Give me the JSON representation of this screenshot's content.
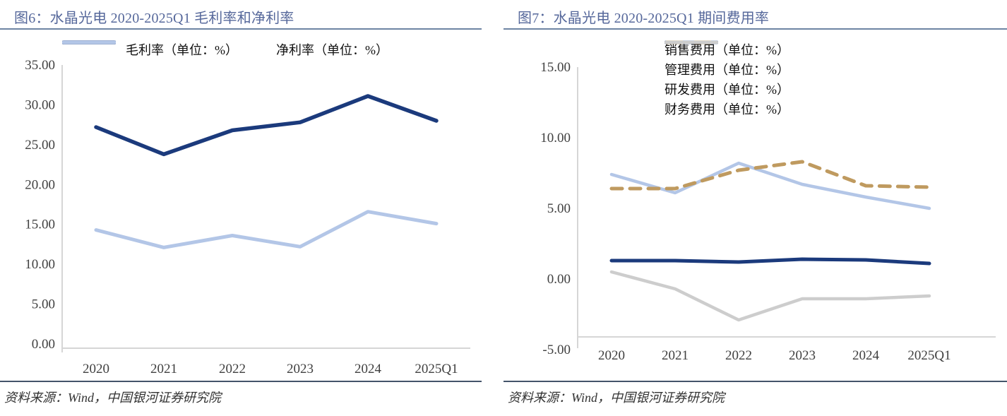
{
  "palette": {
    "title_color": "#56689b",
    "title_rule_color": "#6e84a3",
    "footer_rule_color": "#44546a",
    "axis_line_color": "#d6d6d6",
    "tick_label_color": "#404040",
    "navy": "#1b3a7c",
    "light_blue": "#b3c6e7",
    "tan": "#bf9a5f",
    "gray": "#cdcdcd"
  },
  "figures": [
    {
      "title": "图6：水晶光电 2020-2025Q1 毛利率和净利率",
      "source": "资料来源：Wind，中国银河证券研究院"
    },
    {
      "title": "图7：水晶光电 2020-2025Q1 期间费用率",
      "source": "资料来源：Wind，中国银河证券研究院"
    }
  ],
  "chart_data": [
    {
      "type": "line",
      "title": "图6：水晶光电 2020-2025Q1 毛利率和净利率",
      "categories": [
        "2020",
        "2021",
        "2022",
        "2023",
        "2024",
        "2025Q1"
      ],
      "series": [
        {
          "name": "毛利率（单位：%）",
          "color": "#1b3a7c",
          "style": "solid",
          "values": [
            27.2,
            23.8,
            26.8,
            27.8,
            31.1,
            28.0
          ]
        },
        {
          "name": "净利率（单位：%）",
          "color": "#b3c6e7",
          "style": "solid",
          "values": [
            14.3,
            12.1,
            13.6,
            12.2,
            16.6,
            15.1
          ]
        }
      ],
      "xlabel": "",
      "ylabel": "",
      "ylim": [
        0,
        35
      ],
      "ytick_step": 5,
      "ytick_decimals": 2,
      "grid": false,
      "legend_position": "top-center",
      "source": "资料来源：Wind，中国银河证券研究院"
    },
    {
      "type": "line",
      "title": "图7：水晶光电 2020-2025Q1 期间费用率",
      "categories": [
        "2020",
        "2021",
        "2022",
        "2023",
        "2024",
        "2025Q1"
      ],
      "series": [
        {
          "name": "销售费用（单位：%）",
          "color": "#1b3a7c",
          "style": "solid",
          "values": [
            1.3,
            1.3,
            1.2,
            1.4,
            1.35,
            1.1
          ]
        },
        {
          "name": "管理费用（单位：%）",
          "color": "#b3c6e7",
          "style": "solid",
          "values": [
            7.4,
            6.1,
            8.2,
            6.7,
            5.8,
            5.0
          ]
        },
        {
          "name": "研发费用（单位：%）",
          "color": "#bf9a5f",
          "style": "dashed",
          "values": [
            6.4,
            6.4,
            7.7,
            8.3,
            6.6,
            6.5
          ]
        },
        {
          "name": "财务费用（单位：%）",
          "color": "#cdcdcd",
          "style": "solid",
          "values": [
            0.5,
            -0.7,
            -2.9,
            -1.4,
            -1.4,
            -1.2
          ]
        }
      ],
      "xlabel": "",
      "ylabel": "",
      "ylim": [
        -5,
        15
      ],
      "ytick_step": 5,
      "ytick_decimals": 2,
      "grid": false,
      "legend_position": "top-right",
      "source": "资料来源：Wind，中国银河证券研究院"
    }
  ]
}
